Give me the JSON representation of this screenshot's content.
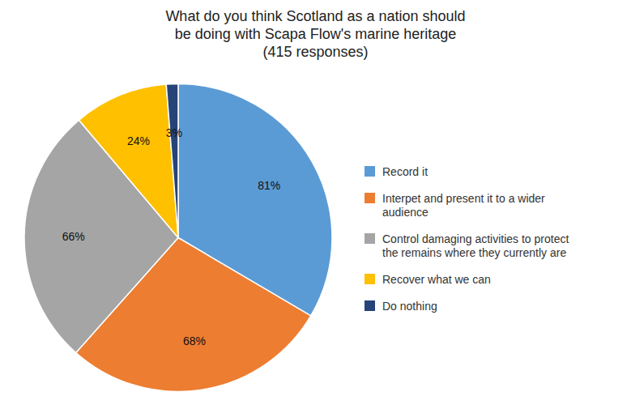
{
  "chart_data": {
    "type": "pie",
    "title": "What do you think Scotland as a nation should\nbe doing with Scapa Flow's marine heritage\n(415 responses)",
    "categories": [
      "Record it",
      "Interpet and present it to a wider\naudience",
      "Control damaging activities to protect\nthe remains where they currently are",
      "Recover what we can",
      "Do nothing"
    ],
    "values": [
      81,
      68,
      66,
      24,
      3
    ],
    "value_labels": [
      "81%",
      "68%",
      "66%",
      "24%",
      "3%"
    ],
    "colors": [
      "#5B9BD5",
      "#ED7D31",
      "#A5A5A5",
      "#FFC000",
      "#264478"
    ],
    "data_labels": true,
    "legend": "right"
  }
}
